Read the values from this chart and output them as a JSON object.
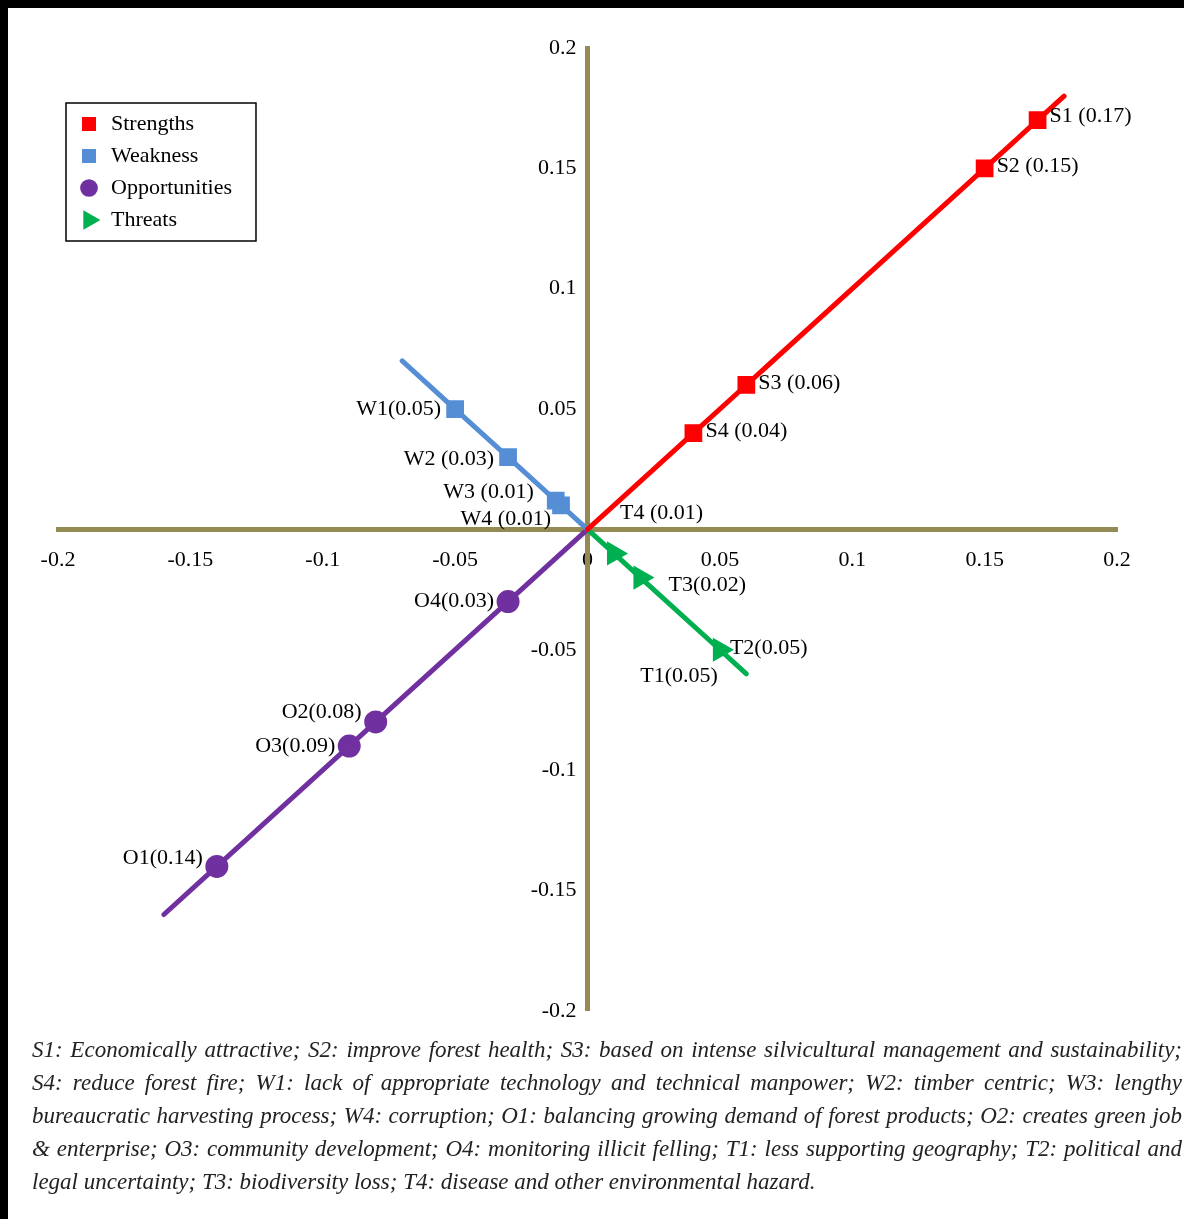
{
  "chart_data": {
    "type": "line",
    "xlim": [
      -0.2,
      0.2
    ],
    "ylim": [
      -0.2,
      0.2
    ],
    "xticks": [
      -0.2,
      -0.15,
      -0.1,
      -0.05,
      0,
      0.05,
      0.1,
      0.15,
      0.2
    ],
    "yticks": [
      -0.2,
      -0.15,
      -0.1,
      -0.05,
      {
        "value": 0,
        "label": null
      },
      0.05,
      0.1,
      0.15,
      0.2
    ],
    "grid": false,
    "legend": "top left",
    "line_style": "solid",
    "series": [
      {
        "name": "Strengths",
        "color": "#ff0000",
        "marker": "square",
        "x": [
          0,
          0.04,
          0.06,
          0.15,
          0.17,
          0.18
        ],
        "values": [
          0,
          0.04,
          0.06,
          0.15,
          0.17,
          0.18
        ]
      },
      {
        "name": "Weakness",
        "color": "#558ed5",
        "marker": "square",
        "x": [
          0,
          -0.01,
          -0.012,
          -0.03,
          -0.05,
          -0.07
        ],
        "values": [
          0,
          0.01,
          0.012,
          0.03,
          0.05,
          0.07
        ]
      },
      {
        "name": "Opportunities",
        "color": "#7030a0",
        "marker": "circle",
        "x": [
          0,
          -0.03,
          -0.08,
          -0.09,
          -0.14,
          -0.16
        ],
        "values": [
          0,
          -0.03,
          -0.08,
          -0.09,
          -0.14,
          -0.16
        ]
      },
      {
        "name": "Threats",
        "color": "#00b050",
        "marker": "triangle",
        "x": [
          0,
          0.01,
          0.02,
          0.05,
          0.06
        ],
        "values": [
          0,
          -0.01,
          -0.02,
          -0.05,
          -0.06
        ]
      }
    ],
    "annotations": [
      {
        "text": "S1 (0.17)",
        "x": 0.17,
        "y": 0.17
      },
      {
        "text": "S2 (0.15)",
        "x": 0.15,
        "y": 0.15
      },
      {
        "text": "S3 (0.06)",
        "x": 0.06,
        "y": 0.06
      },
      {
        "text": "S4 (0.04)",
        "x": 0.04,
        "y": 0.04
      },
      {
        "text": "W1(0.05)",
        "x": -0.05,
        "y": 0.05
      },
      {
        "text": "W2 (0.03)",
        "x": -0.03,
        "y": 0.03
      },
      {
        "text": "W3 (0.01)",
        "x": -0.012,
        "y": 0.012
      },
      {
        "text": "W4 (0.01)",
        "x": -0.01,
        "y": 0.01
      },
      {
        "text": "O1(0.14)",
        "x": -0.14,
        "y": -0.14
      },
      {
        "text": "O2(0.08)",
        "x": -0.08,
        "y": -0.08
      },
      {
        "text": "O3(0.09)",
        "x": -0.09,
        "y": -0.09
      },
      {
        "text": "O4(0.03)",
        "x": -0.03,
        "y": -0.03
      },
      {
        "text": "T1(0.05)",
        "x": 0.05,
        "y": -0.05
      },
      {
        "text": "T2(0.05)",
        "x": 0.05,
        "y": -0.05
      },
      {
        "text": "T3(0.02)",
        "x": 0.02,
        "y": -0.02
      },
      {
        "text": "T4 (0.01)",
        "x": 0.01,
        "y": -0.01
      },
      "S1: Economically attractive; S2: improve forest health; S3: based on intense silvicultural management and sustainability; S4: reduce forest fire; W1: lack of appropriate technology and technical manpower; W2: timber centric; W3: lengthy bureaucratic harvesting process; W4: corruption; O1: balancing growing demand of forest products; O2: creates green job & enterprise; O3: community development; O4: monitoring illicit felling; T1: less supporting geography; T2: political and legal uncertainty; T3: biodiversity loss; T4: disease and other environmental hazard."
    ]
  }
}
